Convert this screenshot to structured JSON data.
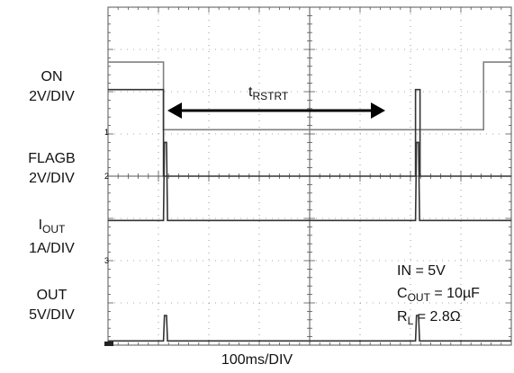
{
  "chart_data": {
    "type": "line",
    "title": "",
    "x_axis": {
      "label": "100ms/DIV",
      "divisions": 8,
      "xlim": [
        0,
        800
      ],
      "unit": "ms"
    },
    "y_axis": {
      "divisions": 8,
      "unit": "div"
    },
    "grid": true,
    "channel_labels": [
      {
        "name": "ON",
        "scale": "2V/DIV"
      },
      {
        "name": "FLAGB",
        "scale": "2V/DIV"
      },
      {
        "name_main": "I",
        "name_sub": "OUT",
        "scale": "1A/DIV"
      },
      {
        "name": "OUT",
        "scale": "5V/DIV"
      }
    ],
    "markers": [
      "1",
      "2",
      "3"
    ],
    "annotation": {
      "main": "t",
      "sub": "RSTRT"
    },
    "conditions": {
      "in": "IN = 5V",
      "cout_main": "C",
      "cout_sub": "OUT",
      "cout_rest": " = 10µF",
      "rl_main": "R",
      "rl_sub": "L",
      "rl_rest": " = 2.8Ω"
    },
    "series": [
      {
        "name": "ON",
        "color": "#808080",
        "points": [
          [
            0,
            6.7
          ],
          [
            110,
            6.7
          ],
          [
            110,
            5.1
          ],
          [
            745,
            5.1
          ],
          [
            745,
            6.7
          ],
          [
            800,
            6.7
          ]
        ]
      },
      {
        "name": "FLAGB",
        "color": "#333333",
        "points": [
          [
            0,
            6.05
          ],
          [
            110,
            6.05
          ],
          [
            110,
            4
          ],
          [
            610,
            4
          ],
          [
            610,
            6.05
          ],
          [
            619,
            6.05
          ],
          [
            619,
            4
          ],
          [
            800,
            4
          ]
        ]
      },
      {
        "name": "IOUT",
        "color": "#333333",
        "points": [
          [
            0,
            2.95
          ],
          [
            110,
            2.95
          ],
          [
            112,
            4.8
          ],
          [
            116,
            4.8
          ],
          [
            118,
            2.95
          ],
          [
            610,
            2.95
          ],
          [
            612,
            4.8
          ],
          [
            616,
            4.8
          ],
          [
            618,
            2.95
          ],
          [
            800,
            2.95
          ]
        ]
      },
      {
        "name": "OUT",
        "color": "#333333",
        "points": [
          [
            0,
            0.1
          ],
          [
            110,
            0.1
          ],
          [
            112,
            0.7
          ],
          [
            116,
            0.7
          ],
          [
            118,
            0.1
          ],
          [
            610,
            0.1
          ],
          [
            612,
            0.7
          ],
          [
            616,
            0.7
          ],
          [
            618,
            0.1
          ],
          [
            800,
            0.1
          ]
        ]
      }
    ],
    "colors": {
      "trace_light": "#808080",
      "trace_dark": "#333333",
      "grid": "#555555"
    }
  }
}
